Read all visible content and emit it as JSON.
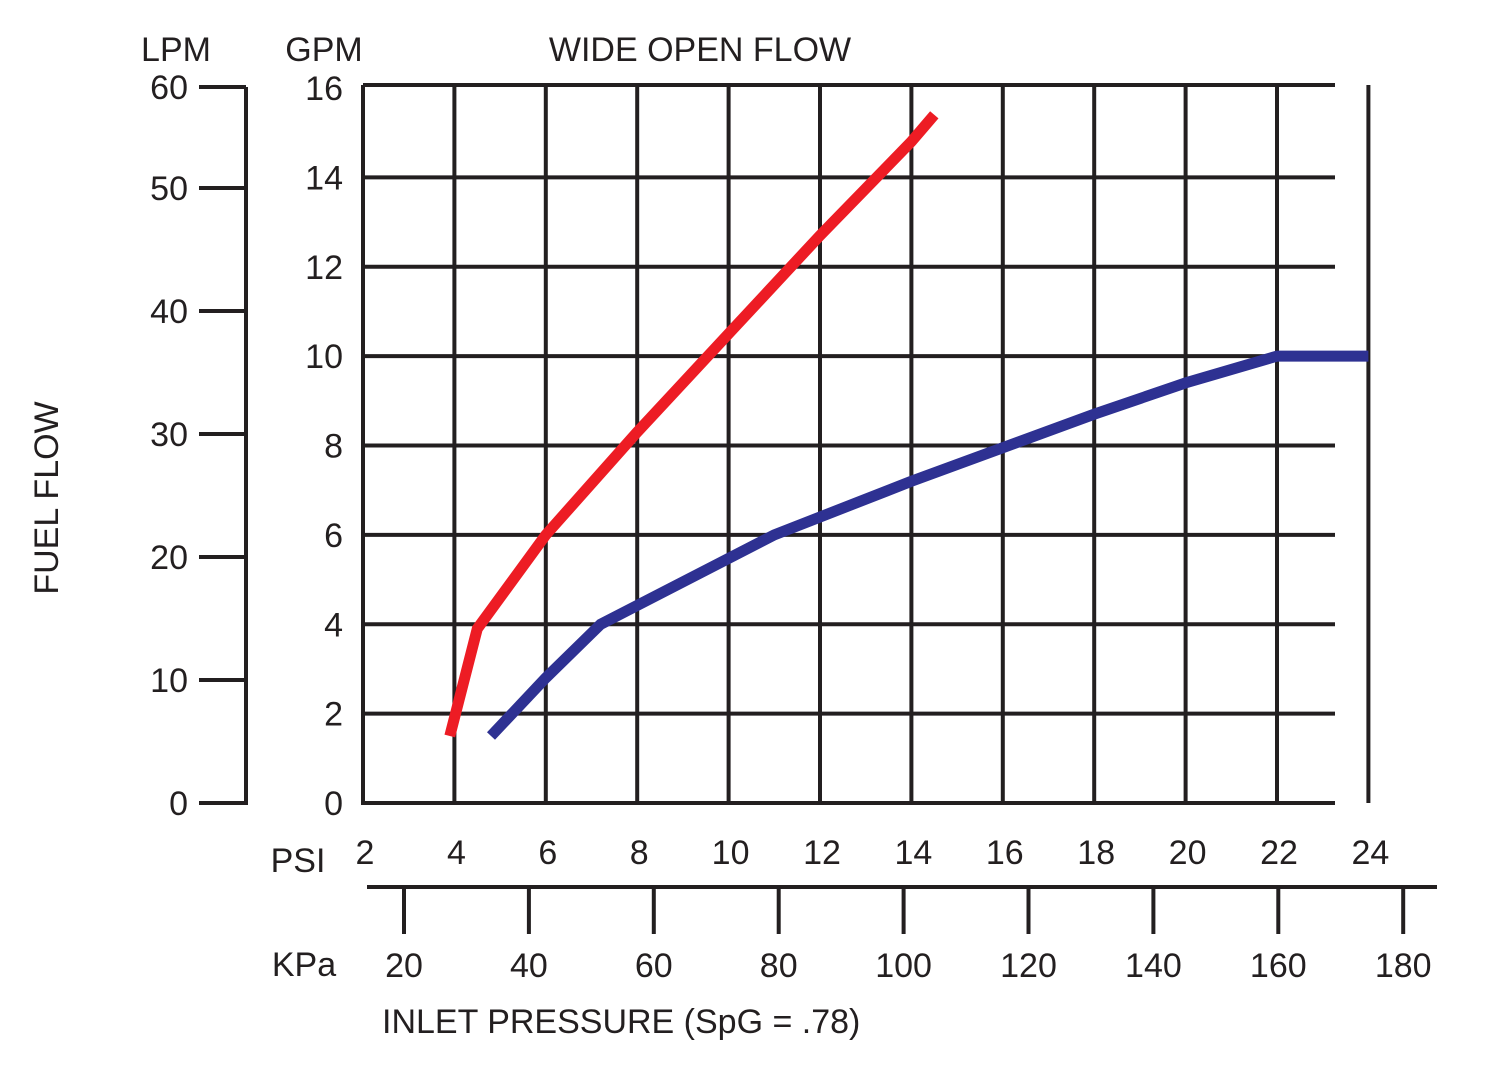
{
  "chart_data": {
    "type": "line",
    "title": "WIDE OPEN FLOW",
    "ylabel": "FUEL FLOW",
    "xlabel": "INLET PRESSURE (SpG = .78)",
    "primary_x_axis": {
      "unit": "PSI",
      "range": [
        2,
        24
      ],
      "ticks": [
        "2",
        "4",
        "6",
        "8",
        "10",
        "12",
        "14",
        "16",
        "18",
        "20",
        "22",
        "24"
      ]
    },
    "secondary_x_axis": {
      "unit": "KPa",
      "ticks": [
        "20",
        "40",
        "60",
        "80",
        "100",
        "120",
        "140",
        "160",
        "180"
      ]
    },
    "primary_y_axis": {
      "unit": "GPM",
      "range": [
        0,
        16
      ],
      "ticks": [
        "0",
        "2",
        "4",
        "6",
        "8",
        "10",
        "12",
        "14",
        "16"
      ]
    },
    "secondary_y_axis": {
      "unit": "LPM",
      "ticks": [
        "0",
        "10",
        "20",
        "30",
        "40",
        "50",
        "60"
      ]
    },
    "grid": true,
    "series": [
      {
        "color": "#ed1c24",
        "points": [
          [
            3.9,
            1.5
          ],
          [
            4.5,
            3.9
          ],
          [
            6.0,
            6.0
          ],
          [
            8.0,
            8.3
          ],
          [
            10.0,
            10.5
          ],
          [
            12.0,
            12.7
          ],
          [
            14.0,
            14.8
          ],
          [
            14.5,
            15.4
          ]
        ]
      },
      {
        "color": "#2e3192",
        "points": [
          [
            4.8,
            1.5
          ],
          [
            6.0,
            2.8
          ],
          [
            7.2,
            4.0
          ],
          [
            11.0,
            6.0
          ],
          [
            14.0,
            7.2
          ],
          [
            18.0,
            8.7
          ],
          [
            20.0,
            9.4
          ],
          [
            22.0,
            10.0
          ],
          [
            24.0,
            10.0
          ]
        ]
      }
    ]
  }
}
